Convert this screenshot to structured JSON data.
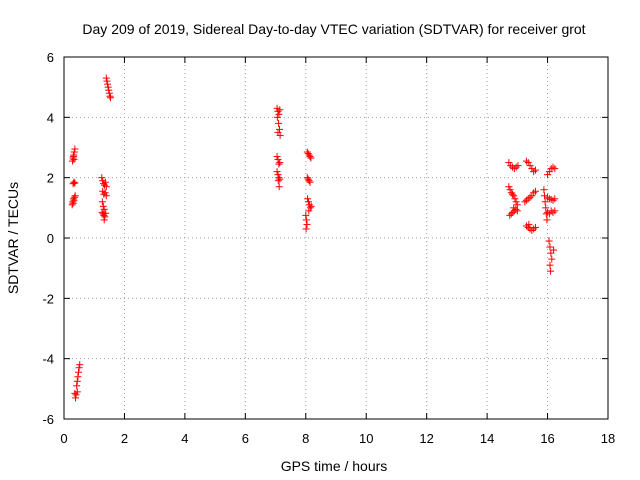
{
  "chart_data": {
    "type": "scatter",
    "title": "Day 209 of 2019, Sidereal Day-to-day VTEC variation (SDTVAR) for receiver grot",
    "xlabel": "GPS time / hours",
    "ylabel": "SDTVAR / TECUs",
    "xlim": [
      0,
      18
    ],
    "ylim": [
      -6,
      6
    ],
    "xticks": [
      0,
      2,
      4,
      6,
      8,
      10,
      12,
      14,
      16,
      18
    ],
    "yticks": [
      -6,
      -4,
      -2,
      0,
      2,
      4,
      6
    ],
    "grid": true,
    "marker": "+",
    "color": "#ff0000",
    "series": [
      {
        "name": "SDTVAR",
        "points": [
          [
            0.28,
            2.55
          ],
          [
            0.3,
            2.65
          ],
          [
            0.32,
            2.75
          ],
          [
            0.34,
            2.85
          ],
          [
            0.36,
            2.95
          ],
          [
            0.33,
            2.6
          ],
          [
            0.31,
            2.7
          ],
          [
            0.3,
            1.8
          ],
          [
            0.33,
            1.85
          ],
          [
            0.36,
            1.82
          ],
          [
            0.27,
            1.1
          ],
          [
            0.29,
            1.2
          ],
          [
            0.31,
            1.3
          ],
          [
            0.33,
            1.25
          ],
          [
            0.35,
            1.35
          ],
          [
            0.37,
            1.4
          ],
          [
            0.3,
            1.15
          ],
          [
            0.36,
            -5.15
          ],
          [
            0.4,
            -5.2
          ],
          [
            0.44,
            -5.1
          ],
          [
            0.38,
            -5.3
          ],
          [
            0.42,
            -4.9
          ],
          [
            0.44,
            -4.75
          ],
          [
            0.46,
            -4.6
          ],
          [
            0.48,
            -4.45
          ],
          [
            0.5,
            -4.3
          ],
          [
            0.52,
            -4.2
          ],
          [
            1.25,
            2.0
          ],
          [
            1.28,
            1.9
          ],
          [
            1.31,
            1.8
          ],
          [
            1.34,
            1.75
          ],
          [
            1.37,
            1.85
          ],
          [
            1.4,
            1.7
          ],
          [
            1.28,
            1.55
          ],
          [
            1.32,
            1.45
          ],
          [
            1.36,
            1.5
          ],
          [
            1.4,
            1.4
          ],
          [
            1.27,
            1.2
          ],
          [
            1.3,
            1.05
          ],
          [
            1.33,
            0.95
          ],
          [
            1.26,
            0.85
          ],
          [
            1.29,
            0.8
          ],
          [
            1.32,
            0.75
          ],
          [
            1.35,
            0.7
          ],
          [
            1.38,
            0.82
          ],
          [
            1.33,
            0.6
          ],
          [
            1.4,
            5.3
          ],
          [
            1.42,
            5.2
          ],
          [
            1.44,
            5.1
          ],
          [
            1.46,
            5.0
          ],
          [
            1.48,
            4.9
          ],
          [
            1.5,
            4.8
          ],
          [
            1.52,
            4.7
          ],
          [
            1.54,
            4.65
          ],
          [
            7.05,
            4.3
          ],
          [
            7.08,
            4.2
          ],
          [
            7.11,
            4.1
          ],
          [
            7.14,
            4.25
          ],
          [
            7.06,
            4.0
          ],
          [
            7.1,
            3.8
          ],
          [
            7.13,
            3.6
          ],
          [
            7.08,
            3.5
          ],
          [
            7.15,
            3.4
          ],
          [
            7.05,
            2.7
          ],
          [
            7.08,
            2.6
          ],
          [
            7.11,
            2.45
          ],
          [
            7.14,
            2.5
          ],
          [
            7.05,
            2.2
          ],
          [
            7.08,
            2.1
          ],
          [
            7.11,
            2.0
          ],
          [
            7.14,
            1.95
          ],
          [
            7.09,
            1.9
          ],
          [
            7.12,
            1.7
          ],
          [
            8.05,
            2.85
          ],
          [
            8.08,
            2.8
          ],
          [
            8.11,
            2.75
          ],
          [
            8.14,
            2.7
          ],
          [
            8.17,
            2.65
          ],
          [
            8.05,
            2.0
          ],
          [
            8.08,
            1.95
          ],
          [
            8.11,
            1.9
          ],
          [
            8.14,
            1.85
          ],
          [
            8.06,
            1.3
          ],
          [
            8.09,
            1.2
          ],
          [
            8.12,
            1.1
          ],
          [
            8.15,
            1.0
          ],
          [
            8.18,
            1.05
          ],
          [
            8.1,
            0.9
          ],
          [
            8.0,
            0.75
          ],
          [
            8.02,
            0.6
          ],
          [
            8.04,
            0.45
          ],
          [
            8.01,
            0.3
          ],
          [
            14.72,
            2.5
          ],
          [
            14.78,
            2.4
          ],
          [
            14.84,
            2.35
          ],
          [
            14.9,
            2.3
          ],
          [
            14.96,
            2.35
          ],
          [
            15.02,
            2.4
          ],
          [
            14.72,
            1.7
          ],
          [
            14.76,
            1.6
          ],
          [
            14.8,
            1.5
          ],
          [
            14.84,
            1.45
          ],
          [
            14.88,
            1.4
          ],
          [
            14.92,
            1.3
          ],
          [
            14.96,
            1.2
          ],
          [
            15.0,
            1.1
          ],
          [
            14.75,
            0.75
          ],
          [
            14.8,
            0.8
          ],
          [
            14.85,
            0.85
          ],
          [
            14.9,
            0.9
          ],
          [
            14.95,
            0.95
          ],
          [
            15.0,
            0.9
          ],
          [
            14.88,
            1.0
          ],
          [
            15.3,
            2.55
          ],
          [
            15.36,
            2.5
          ],
          [
            15.42,
            2.4
          ],
          [
            15.48,
            2.3
          ],
          [
            15.54,
            2.2
          ],
          [
            15.6,
            2.25
          ],
          [
            15.3,
            1.25
          ],
          [
            15.36,
            1.3
          ],
          [
            15.42,
            1.35
          ],
          [
            15.48,
            1.4
          ],
          [
            15.54,
            1.5
          ],
          [
            15.6,
            1.55
          ],
          [
            15.25,
            1.2
          ],
          [
            15.3,
            0.4
          ],
          [
            15.36,
            0.35
          ],
          [
            15.42,
            0.3
          ],
          [
            15.48,
            0.25
          ],
          [
            15.54,
            0.3
          ],
          [
            15.6,
            0.35
          ],
          [
            15.38,
            0.45
          ],
          [
            15.88,
            1.6
          ],
          [
            15.9,
            1.4
          ],
          [
            15.92,
            1.2
          ],
          [
            15.94,
            1.0
          ],
          [
            15.96,
            0.8
          ],
          [
            15.98,
            0.6
          ],
          [
            16.0,
            2.1
          ],
          [
            16.06,
            2.2
          ],
          [
            16.12,
            2.3
          ],
          [
            16.18,
            2.35
          ],
          [
            16.24,
            2.3
          ],
          [
            16.0,
            1.35
          ],
          [
            16.06,
            1.3
          ],
          [
            16.12,
            1.28
          ],
          [
            16.18,
            1.25
          ],
          [
            16.24,
            1.3
          ],
          [
            16.0,
            0.85
          ],
          [
            16.06,
            0.8
          ],
          [
            16.12,
            0.9
          ],
          [
            16.18,
            0.85
          ],
          [
            16.24,
            0.9
          ],
          [
            16.05,
            -0.1
          ],
          [
            16.08,
            -0.3
          ],
          [
            16.11,
            -0.5
          ],
          [
            16.14,
            -0.7
          ],
          [
            16.08,
            -0.9
          ],
          [
            16.1,
            -1.1
          ],
          [
            16.2,
            -0.4
          ]
        ]
      }
    ]
  }
}
